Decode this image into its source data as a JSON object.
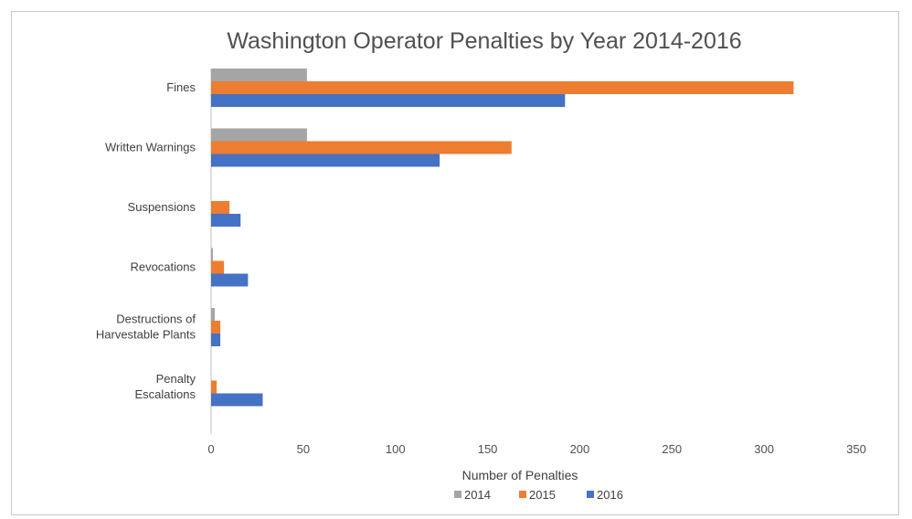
{
  "chart_data": {
    "type": "bar",
    "orientation": "horizontal",
    "title": "Washington Operator Penalties by Year 2014-2016",
    "xlabel": "Number of Penalties",
    "ylabel": "",
    "xlim": [
      0,
      350
    ],
    "x_ticks": [
      "0",
      "50",
      "100",
      "150",
      "200",
      "250",
      "300",
      "350"
    ],
    "grid": false,
    "legend_position": "bottom",
    "categories": [
      [
        "Fines"
      ],
      [
        "Written Warnings"
      ],
      [
        "Suspensions"
      ],
      [
        "Revocations"
      ],
      [
        "Destructions of",
        "Harvestable Plants"
      ],
      [
        "Penalty",
        "Escalations"
      ]
    ],
    "series": [
      {
        "name": "2014",
        "color": "#a5a5a5",
        "values": [
          52,
          52,
          0,
          1,
          2,
          0
        ]
      },
      {
        "name": "2015",
        "color": "#ed7d31",
        "values": [
          316,
          163,
          10,
          7,
          5,
          3
        ]
      },
      {
        "name": "2016",
        "color": "#4472c4",
        "values": [
          192,
          124,
          16,
          20,
          5,
          28
        ]
      }
    ]
  }
}
